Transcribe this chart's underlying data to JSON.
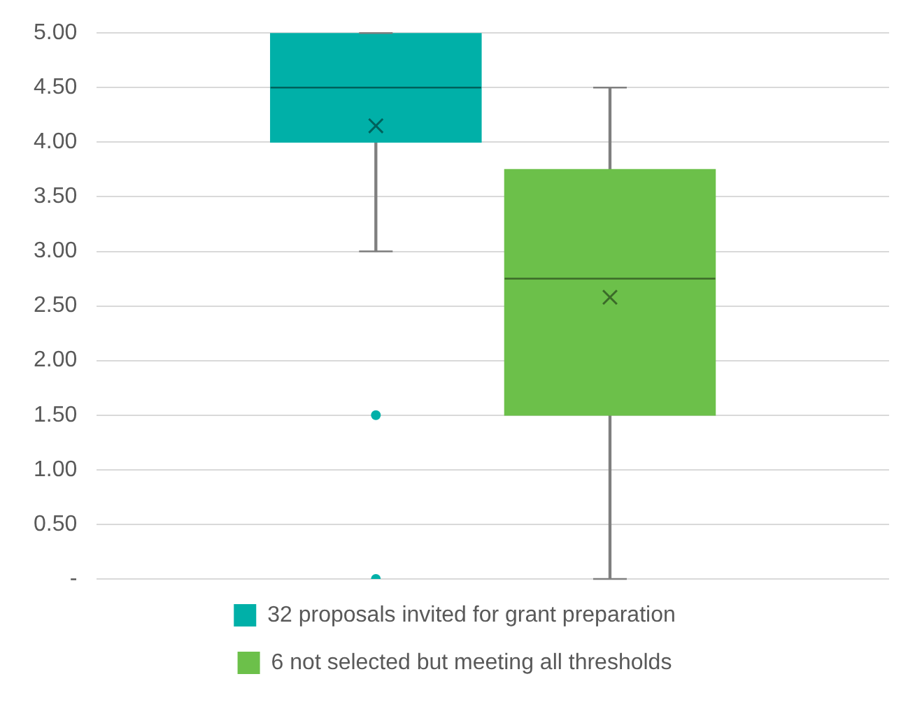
{
  "chart_data": {
    "type": "box",
    "categories": [
      null
    ],
    "series": [
      {
        "name": "32 proposals invited for grant preparation",
        "color": "#00b0a8",
        "boxes": [
          {
            "low": 3.0,
            "q1": 4.0,
            "median": 4.5,
            "q3": 5.0,
            "high": 5.0,
            "mean": 4.15,
            "outliers": [
              1.5,
              0
            ]
          }
        ]
      },
      {
        "name": "6 not selected but meeting all thresholds",
        "color": "#6cc04a",
        "boxes": [
          {
            "low": 0,
            "q1": 1.5,
            "median": 2.75,
            "q3": 3.75,
            "high": 4.5,
            "mean": 2.58
          }
        ]
      }
    ],
    "ylim": [
      0,
      5
    ],
    "yticks": [
      {
        "value": 0,
        "label": "-"
      },
      {
        "value": 0.5,
        "label": "0.50"
      },
      {
        "value": 1,
        "label": "1.00"
      },
      {
        "value": 1.5,
        "label": "1.50"
      },
      {
        "value": 2,
        "label": "2.00"
      },
      {
        "value": 2.5,
        "label": "2.50"
      },
      {
        "value": 3,
        "label": "3.00"
      },
      {
        "value": 3.5,
        "label": "3.50"
      },
      {
        "value": 4,
        "label": "4.00"
      },
      {
        "value": 4.5,
        "label": "4.50"
      },
      {
        "value": 5,
        "label": "5.00"
      }
    ],
    "grid": "y",
    "legend": "bottom"
  }
}
